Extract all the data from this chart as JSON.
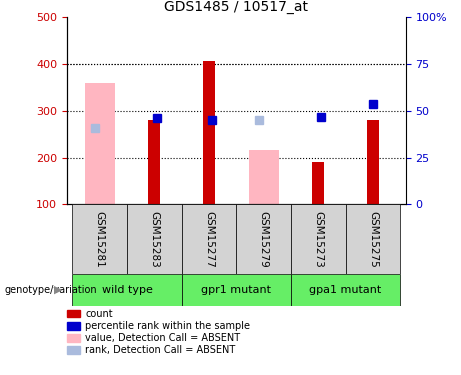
{
  "title": "GDS1485 / 10517_at",
  "samples": [
    "GSM15281",
    "GSM15283",
    "GSM15277",
    "GSM15279",
    "GSM15273",
    "GSM15275"
  ],
  "count_bars": [
    null,
    280,
    405,
    null,
    190,
    280
  ],
  "count_color": "#CC0000",
  "value_absent_bars": [
    358,
    null,
    null,
    215,
    null,
    null
  ],
  "value_absent_color": "#FFB6C1",
  "rank_present_markers": [
    null,
    285,
    280,
    null,
    287,
    null
  ],
  "rank_present_color": "#0000CC",
  "rank_absent_markers": [
    263,
    null,
    null,
    280,
    null,
    null
  ],
  "rank_absent_color": "#AABBDD",
  "rank_special_marker": [
    null,
    null,
    null,
    null,
    null,
    315
  ],
  "rank_special_color": "#0000CC",
  "ylim": [
    100,
    500
  ],
  "yticks_left": [
    100,
    200,
    300,
    400,
    500
  ],
  "yticks_right_labels": [
    "0",
    "25",
    "50",
    "75",
    "100%"
  ],
  "yticks_right_pos": [
    100,
    200,
    300,
    400,
    500
  ],
  "ylabel_left_color": "#CC0000",
  "ylabel_right_color": "#0000CC",
  "grid_yticks": [
    200,
    300,
    400
  ],
  "groups_info": [
    [
      0,
      1,
      "wild type"
    ],
    [
      2,
      3,
      "gpr1 mutant"
    ],
    [
      4,
      5,
      "gpa1 mutant"
    ]
  ],
  "legend_items": [
    {
      "label": "count",
      "color": "#CC0000"
    },
    {
      "label": "percentile rank within the sample",
      "color": "#0000CC"
    },
    {
      "label": "value, Detection Call = ABSENT",
      "color": "#FFB6C1"
    },
    {
      "label": "rank, Detection Call = ABSENT",
      "color": "#AABBDD"
    }
  ],
  "genotype_label": "genotype/variation",
  "sample_box_color": "#D3D3D3",
  "group_box_color": "#66EE66"
}
